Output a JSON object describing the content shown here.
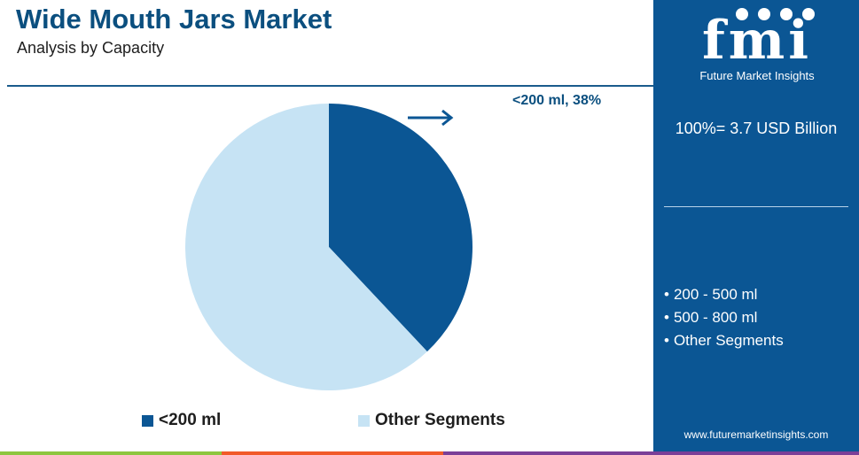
{
  "header": {
    "title": "Wide Mouth Jars Market",
    "subtitle": "Analysis by Capacity"
  },
  "chart_data": {
    "type": "pie",
    "title": "Wide Mouth Jars Market",
    "subtitle": "Analysis by Capacity",
    "slices": [
      {
        "label": "<200 ml",
        "value": 38,
        "color": "#0b5694"
      },
      {
        "label": "Other Segments",
        "value": 62,
        "color": "#c6e3f4"
      }
    ],
    "callout": "<200 ml, 38%",
    "legend": [
      "<200 ml",
      "Other Segments"
    ],
    "legend_position": "bottom"
  },
  "side_panel": {
    "logo_text": "fmi",
    "logo_caption": "Future Market Insights",
    "total": "100%= 3.7 USD Billion",
    "other_segments": [
      "200 - 500 ml",
      "500 - 800 ml",
      "Other Segments"
    ],
    "website": "www.futuremarketinsights.com"
  },
  "colors": {
    "primary": "#0b5694",
    "light": "#c6e3f4",
    "title": "#0b4f7f",
    "footer": [
      "#8dc63f",
      "#f15a29",
      "#7b3f98"
    ]
  }
}
